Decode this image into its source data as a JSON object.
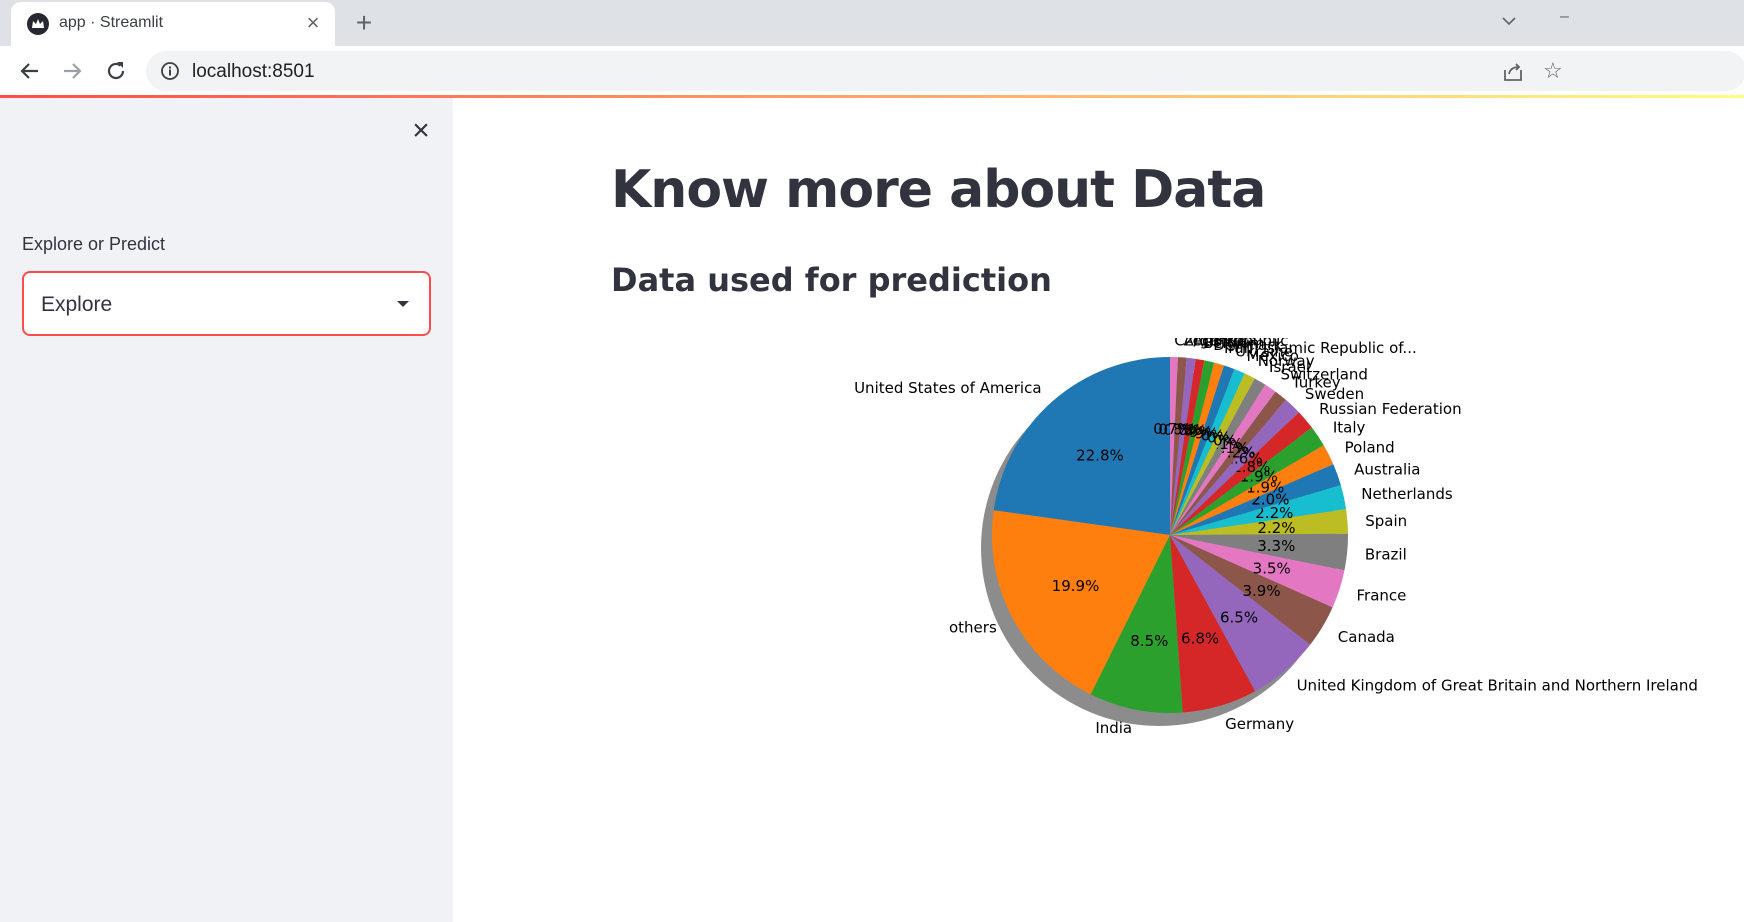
{
  "browser": {
    "tab_title": "app · Streamlit",
    "url": "localhost:8501",
    "icons": [
      "streamlit-crown-icon",
      "close-icon",
      "plus-icon",
      "chevron-down-icon",
      "back-arrow-icon",
      "forward-arrow-icon",
      "reload-icon",
      "info-icon",
      "share-icon",
      "star-icon"
    ]
  },
  "sidebar": {
    "select_label": "Explore or Predict",
    "select_value": "Explore"
  },
  "main": {
    "title": "Know more about Data",
    "subheader": "Data used for prediction"
  },
  "chart_data": {
    "type": "pie",
    "shadow": true,
    "start_angle_deg": 90,
    "title": "",
    "slices": [
      {
        "label": "United States of America",
        "value": 22.8,
        "color": "#1f77b4"
      },
      {
        "label": "others",
        "value": 19.9,
        "color": "#ff7f0e"
      },
      {
        "label": "India",
        "value": 8.5,
        "color": "#2ca02c"
      },
      {
        "label": "Germany",
        "value": 6.8,
        "color": "#d62728"
      },
      {
        "label": "United Kingdom of Great Britain and Northern Ireland",
        "value": 6.5,
        "color": "#9467bd"
      },
      {
        "label": "Canada",
        "value": 3.9,
        "color": "#8c564b"
      },
      {
        "label": "France",
        "value": 3.5,
        "color": "#e377c2"
      },
      {
        "label": "Brazil",
        "value": 3.3,
        "color": "#7f7f7f"
      },
      {
        "label": "Spain",
        "value": 2.2,
        "color": "#bcbd22"
      },
      {
        "label": "Netherlands",
        "value": 2.2,
        "color": "#17becf"
      },
      {
        "label": "Australia",
        "value": 2.0,
        "color": "#1f77b4"
      },
      {
        "label": "Poland",
        "value": 1.9,
        "color": "#ff7f0e"
      },
      {
        "label": "Italy",
        "value": 1.9,
        "color": "#2ca02c"
      },
      {
        "label": "Russian Federation",
        "value": 1.8,
        "color": "#d62728"
      },
      {
        "label": "Sweden",
        "value": 1.6,
        "color": "#9467bd"
      },
      {
        "label": "Turkey",
        "value": 1.2,
        "color": "#8c564b"
      },
      {
        "label": "Switzerland",
        "value": 1.1,
        "color": "#e377c2"
      },
      {
        "label": "Israel",
        "value": 1.1,
        "color": "#7f7f7f"
      },
      {
        "label": "Norway",
        "value": 1.0,
        "color": "#bcbd22"
      },
      {
        "label": "Mexico",
        "value": 1.0,
        "color": "#17becf"
      },
      {
        "label": "Ukraine",
        "value": 1.0,
        "color": "#1f77b4"
      },
      {
        "label": "Iran, Islamic Republic of...",
        "value": 0.9,
        "color": "#ff7f0e"
      },
      {
        "label": "Denmark",
        "value": 0.9,
        "color": "#2ca02c"
      },
      {
        "label": "Belgium",
        "value": 0.8,
        "color": "#d62728"
      },
      {
        "label": "Austria",
        "value": 0.8,
        "color": "#9467bd"
      },
      {
        "label": "Argentina",
        "value": 0.8,
        "color": "#8c564b"
      },
      {
        "label": "Czech Republic",
        "value": 0.7,
        "color": "#e377c2"
      }
    ]
  }
}
